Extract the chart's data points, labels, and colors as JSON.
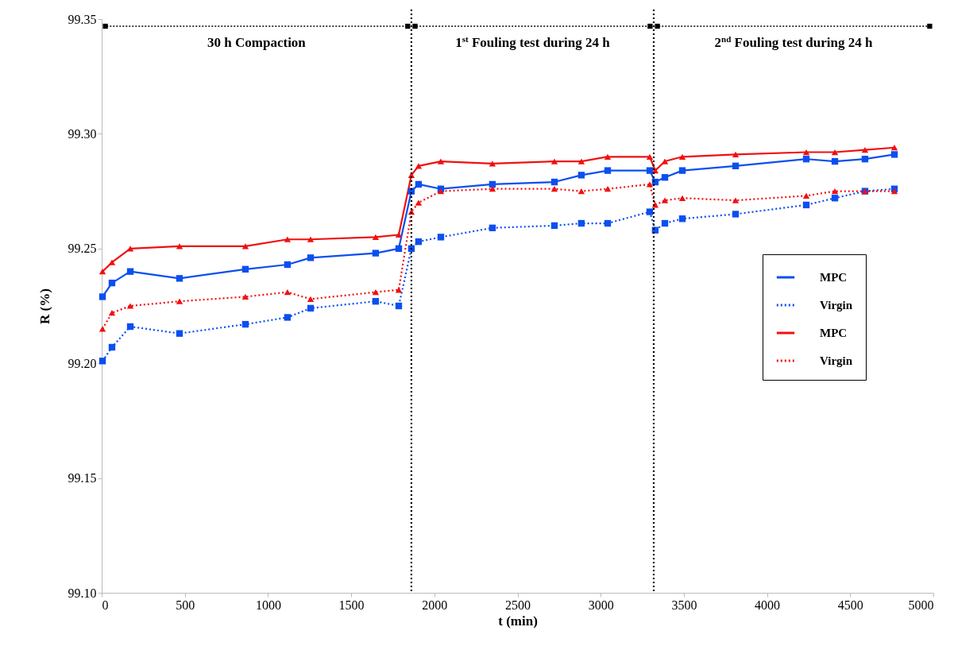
{
  "chart_data": {
    "type": "line",
    "xlabel": "t (min)",
    "ylabel": "R (%)",
    "xlim": [
      0,
      5000
    ],
    "xticks": [
      0,
      500,
      1000,
      1500,
      2000,
      2500,
      3000,
      3500,
      4000,
      4500,
      5000
    ],
    "ylim": [
      99.1,
      99.35
    ],
    "yticks": [
      {
        "value": 99.1,
        "label": "99.10"
      },
      99.15,
      {
        "value": 99.2,
        "label": "99.20"
      },
      99.25,
      {
        "value": 99.3,
        "label": "99.30"
      },
      99.35
    ],
    "x": [
      5,
      62,
      172,
      468,
      864,
      1117,
      1256,
      1647,
      1786,
      1862,
      1905,
      2039,
      2349,
      2722,
      2884,
      3042,
      3295,
      3328,
      3386,
      3491,
      3811,
      4236,
      4408,
      4589,
      4766
    ],
    "series": [
      {
        "name": "MPC",
        "color": "#0b4ff0",
        "line_style": "solid",
        "marker": "square",
        "values": [
          99.229,
          99.235,
          99.24,
          99.237,
          99.241,
          99.243,
          99.246,
          99.248,
          99.25,
          99.275,
          99.278,
          99.276,
          99.278,
          99.279,
          99.282,
          99.284,
          99.284,
          99.279,
          99.281,
          99.284,
          99.286,
          99.289,
          99.288,
          99.289,
          99.291
        ]
      },
      {
        "name": "Virgin",
        "color": "#0b4ff0",
        "line_style": "dotted",
        "marker": "square",
        "values": [
          99.201,
          99.207,
          99.216,
          99.213,
          99.217,
          99.22,
          99.224,
          99.227,
          99.225,
          99.25,
          99.253,
          99.255,
          99.259,
          99.26,
          99.261,
          99.261,
          99.266,
          99.258,
          99.261,
          99.263,
          99.265,
          99.269,
          99.272,
          99.275,
          99.276
        ]
      },
      {
        "name": "MPC",
        "color": "#f01010",
        "line_style": "solid",
        "marker": "triangle",
        "values": [
          99.24,
          99.244,
          99.25,
          99.251,
          99.251,
          99.254,
          99.254,
          99.255,
          99.256,
          99.282,
          99.286,
          99.288,
          99.287,
          99.288,
          99.288,
          99.29,
          99.29,
          99.284,
          99.288,
          99.29,
          99.291,
          99.292,
          99.292,
          99.293,
          99.294
        ]
      },
      {
        "name": "Virgin",
        "color": "#f01010",
        "line_style": "dotted",
        "marker": "triangle",
        "values": [
          99.215,
          99.222,
          99.225,
          99.227,
          99.229,
          99.231,
          99.228,
          99.231,
          99.232,
          99.266,
          99.27,
          99.275,
          99.276,
          99.276,
          99.275,
          99.276,
          99.278,
          99.269,
          99.271,
          99.272,
          99.271,
          99.273,
          99.275,
          99.275,
          99.275
        ]
      }
    ],
    "ref_lines": [
      {
        "axis": "x",
        "value": 1862,
        "color": "#000000",
        "line_style": "dotted"
      },
      {
        "axis": "x",
        "value": 3319,
        "color": "#000000",
        "line_style": "dotted"
      }
    ],
    "annotations": [
      "30 h Compaction",
      "1$^{st}$ Fouling test during 24 h",
      "2$^{nd}$ Fouling test during 24 h"
    ],
    "legend": "right",
    "grid": false
  }
}
